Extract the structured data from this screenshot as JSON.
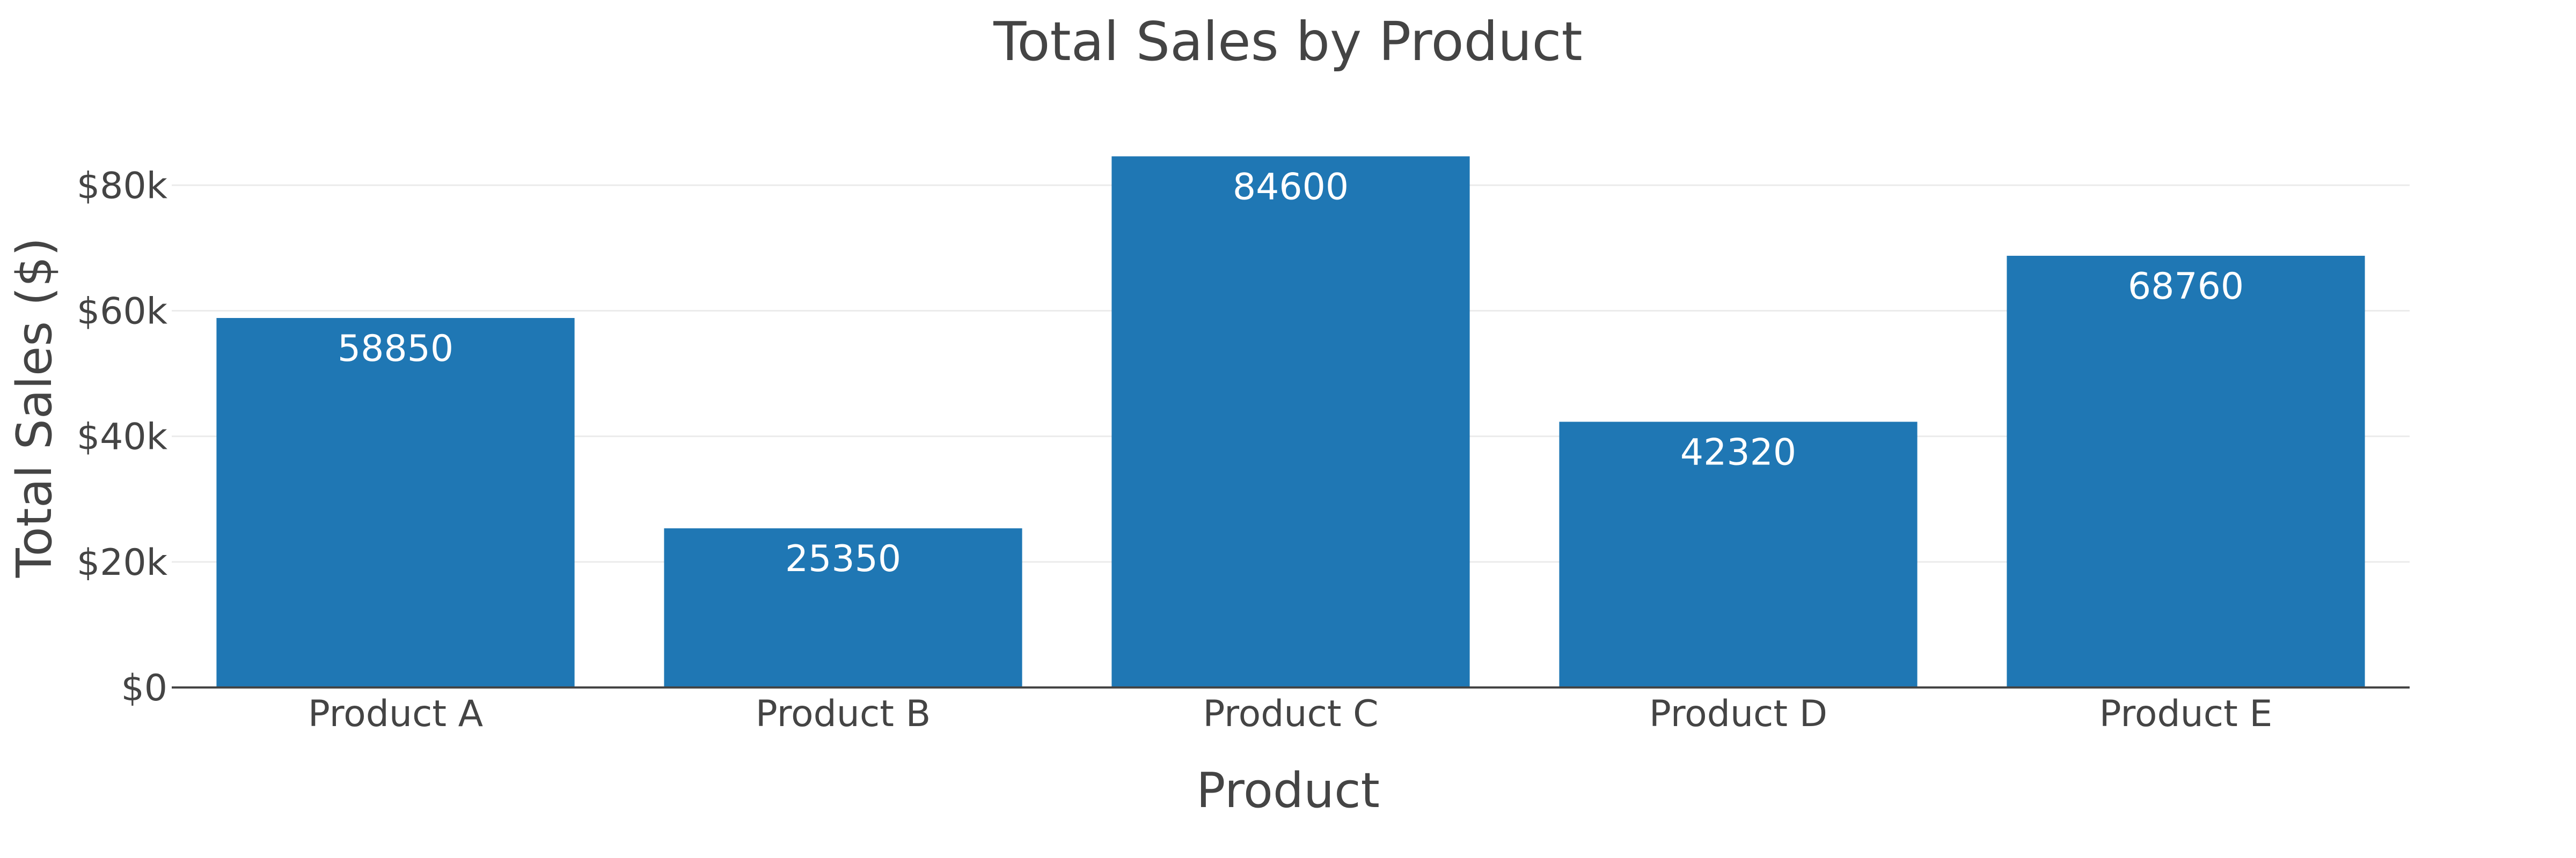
{
  "chart_data": {
    "type": "bar",
    "title": "Total Sales by Product",
    "xlabel": "Product",
    "ylabel": "Total Sales ($)",
    "categories": [
      "Product A",
      "Product B",
      "Product C",
      "Product D",
      "Product E"
    ],
    "values": [
      58850,
      25350,
      84600,
      42320,
      68760
    ],
    "data_labels": [
      "58850",
      "25350",
      "84600",
      "42320",
      "68760"
    ],
    "ylim": [
      0,
      89000
    ],
    "yticks": [
      0,
      20000,
      40000,
      60000,
      80000
    ],
    "ytick_labels": [
      "$0",
      "$20k",
      "$40k",
      "$60k",
      "$80k"
    ],
    "grid": true,
    "bar_color": "#1f77b4",
    "text_color": "#444444",
    "grid_color": "#ebebeb"
  }
}
